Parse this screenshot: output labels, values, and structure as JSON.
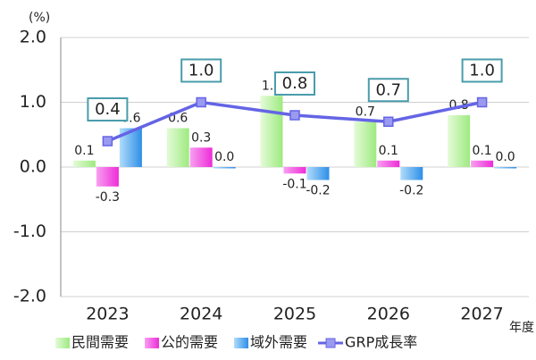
{
  "chart_data": {
    "type": "bar_line",
    "y_unit": "(%)",
    "x_unit": "年度",
    "categories": [
      "2023",
      "2024",
      "2025",
      "2026",
      "2027"
    ],
    "ylim": [
      -2,
      2
    ],
    "yticks": [
      {
        "value": 2,
        "label": "2.0"
      },
      {
        "value": 1,
        "label": "1.0"
      },
      {
        "value": 0,
        "label": "0.0"
      },
      {
        "value": -1,
        "label": "-1.0"
      },
      {
        "value": -2,
        "label": "-2.0"
      }
    ],
    "grid": true,
    "series": [
      {
        "name": "民間需要",
        "type": "bar",
        "color": "#a8ee8c",
        "values": [
          0.1,
          0.6,
          1.1,
          0.7,
          0.8
        ],
        "value_labels": [
          "0.1",
          "0.6",
          "1.1",
          "0.7",
          "0.8"
        ]
      },
      {
        "name": "公的需要",
        "type": "bar",
        "color": "#f03ce0",
        "values": [
          -0.3,
          0.3,
          -0.1,
          0.1,
          0.1
        ],
        "value_labels": [
          "-0.3",
          "0.3",
          "-0.1",
          "0.1",
          "0.1"
        ]
      },
      {
        "name": "域外需要",
        "type": "bar",
        "color": "#4aa4f0",
        "values": [
          0.6,
          0.0,
          -0.2,
          -0.2,
          0.0
        ],
        "value_labels": [
          "0.6",
          "0.0",
          "-0.2",
          "-0.2",
          "0.0"
        ]
      },
      {
        "name": "GRP成長率",
        "type": "line",
        "color": "#6464e6",
        "values": [
          0.4,
          1.0,
          0.8,
          0.7,
          1.0
        ],
        "value_labels": [
          "0.4",
          "1.0",
          "0.8",
          "0.7",
          "1.0"
        ]
      }
    ]
  }
}
